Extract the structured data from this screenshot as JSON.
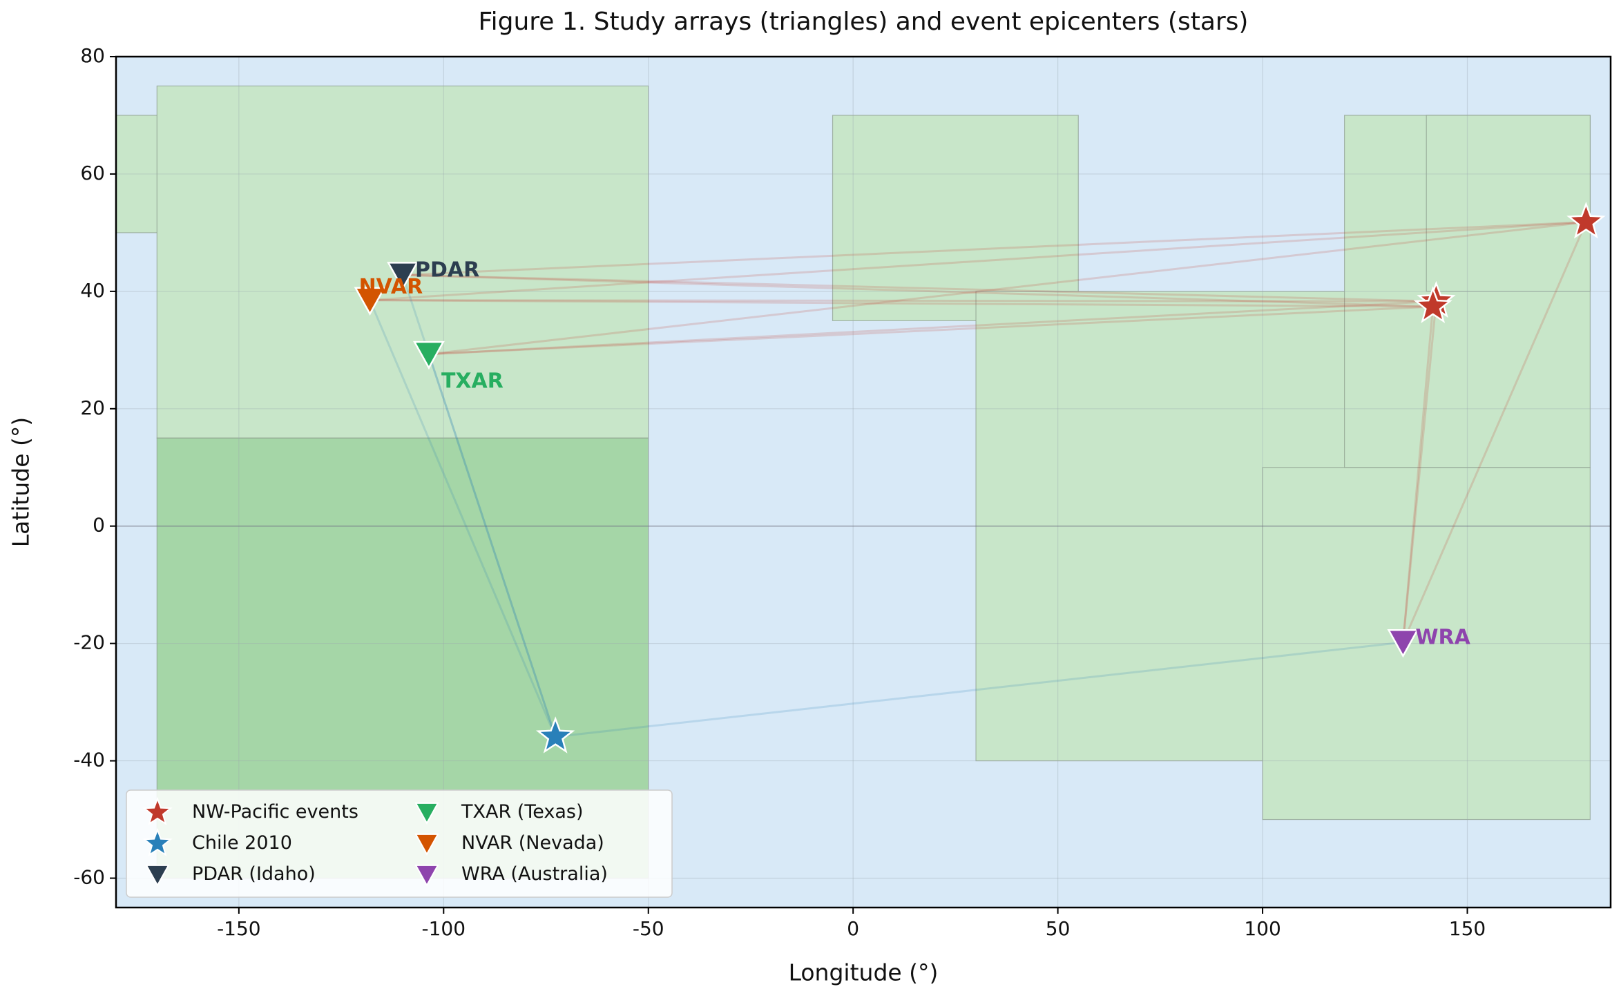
{
  "chart_data": {
    "type": "scatter",
    "title": "Figure 1. Study arrays (triangles) and event epicenters (stars)",
    "x_label": "Longitude (°)",
    "y_label": "Latitude (°)",
    "xlim": [
      -180,
      185
    ],
    "ylim": [
      -65,
      80
    ],
    "xticks": [
      -150,
      -100,
      -50,
      0,
      50,
      100,
      150
    ],
    "yticks": [
      -60,
      -40,
      -20,
      0,
      20,
      40,
      60,
      80
    ],
    "grid": true,
    "hlines": [
      0
    ],
    "background": "#d8e9f7",
    "legend": "lower left",
    "regions": [
      {
        "x": [
          -180,
          -140
        ],
        "y": [
          50,
          70
        ],
        "color": "#c8e6c9"
      },
      {
        "x": [
          -170,
          -50
        ],
        "y": [
          15,
          75
        ],
        "color": "#c8e6c9"
      },
      {
        "x": [
          -170,
          -50
        ],
        "y": [
          -60,
          15
        ],
        "color": "#a5d6a7"
      },
      {
        "x": [
          -5,
          55
        ],
        "y": [
          35,
          70
        ],
        "color": "#c8e6c9"
      },
      {
        "x": [
          30,
          140
        ],
        "y": [
          -40,
          40
        ],
        "color": "#c8e6c9"
      },
      {
        "x": [
          100,
          180
        ],
        "y": [
          -50,
          10
        ],
        "color": "#c8e6c9"
      },
      {
        "x": [
          120,
          180
        ],
        "y": [
          10,
          70
        ],
        "color": "#c8e6c9"
      },
      {
        "x": [
          140,
          180
        ],
        "y": [
          40,
          70
        ],
        "color": "#c8e6c9"
      }
    ],
    "series": [
      {
        "name": "NW-Pacific events",
        "color": "#c0392b",
        "marker": "star",
        "x": [
          142.4,
          141.6,
          179
        ],
        "y": [
          38.3,
          37.4,
          51.8
        ]
      },
      {
        "name": "Chile 2010",
        "color": "#2980b9",
        "marker": "star",
        "x": [
          -72.7
        ],
        "y": [
          -35.9
        ]
      },
      {
        "name": "PDAR (Idaho)",
        "color": "#2c3e50",
        "marker": "triangle",
        "label": "PDAR",
        "x": [
          -110
        ],
        "y": [
          42.8
        ]
      },
      {
        "name": "TXAR (Texas)",
        "color": "#27ae60",
        "marker": "triangle",
        "label": "TXAR",
        "x": [
          -103.6
        ],
        "y": [
          29.3
        ]
      },
      {
        "name": "NVAR (Nevada)",
        "color": "#d35400",
        "marker": "triangle",
        "label": "NVAR",
        "x": [
          -118
        ],
        "y": [
          38.5
        ]
      },
      {
        "name": "WRA (Australia)",
        "color": "#8e44ad",
        "marker": "triangle",
        "label": "WRA",
        "x": [
          134.3
        ],
        "y": [
          -19.8
        ]
      }
    ]
  }
}
